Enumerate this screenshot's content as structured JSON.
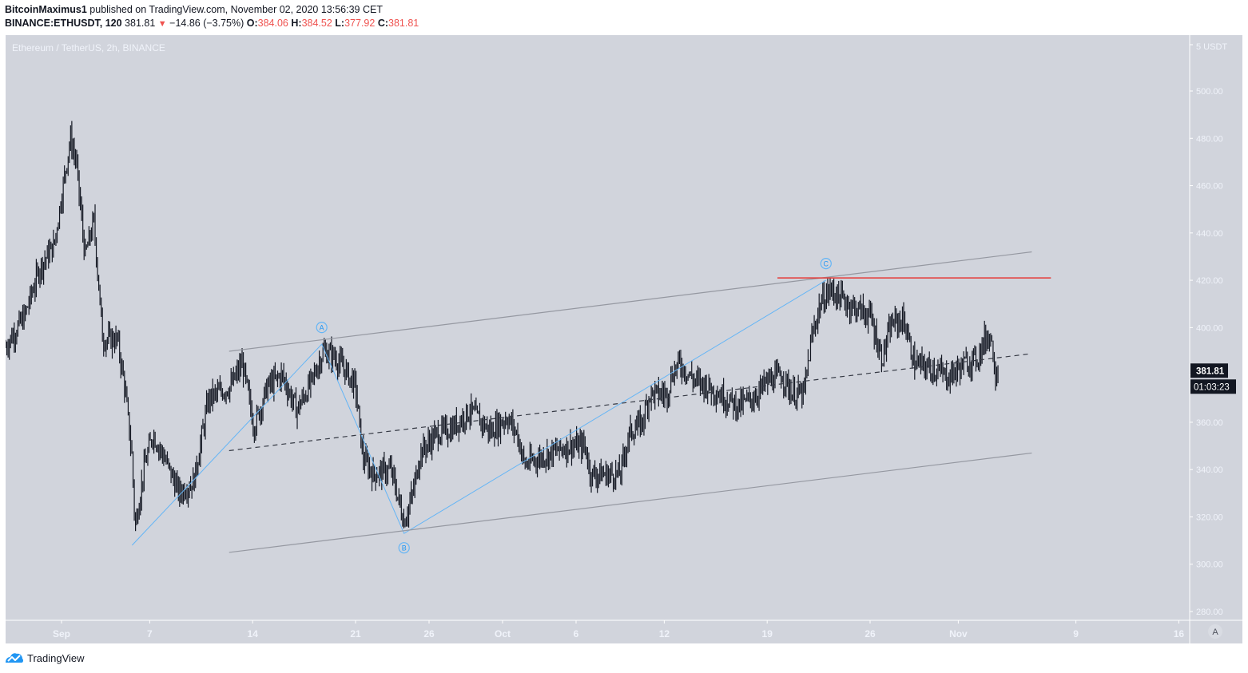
{
  "header": {
    "author": "BitcoinMaximus1",
    "published_text": "published on TradingView.com, November 02, 2020 13:56:39 CET",
    "symbol": "BINANCE:ETHUSDT, 120",
    "last": "381.81",
    "change": "−14.86 (−3.75%)",
    "o_label": "O:",
    "o": "384.06",
    "h_label": "H:",
    "h": "384.52",
    "l_label": "L:",
    "l": "377.92",
    "c_label": "C:",
    "c": "381.81"
  },
  "chart": {
    "legend": "Ethereum / TetherUS, 2h, BINANCE",
    "currency_label": "5 USDT",
    "price_tag": "381.81",
    "countdown_tag": "01:03:23",
    "auto_button": "A"
  },
  "footer": {
    "brand": "TradingView"
  },
  "colors": {
    "background": "#d1d4dc",
    "candle": "#131722",
    "wave_line": "#64b5f6",
    "channel_line": "#9598a1",
    "resistance": "#e53935",
    "axis_text": "#f0f3fa",
    "tag_bg": "#131722"
  },
  "chart_data": {
    "type": "candlestick",
    "title": "Ethereum / TetherUS, 2h, BINANCE",
    "symbol": "BINANCE:ETHUSDT",
    "interval": "2h",
    "ylabel": "USDT",
    "ylim": [
      272,
      512
    ],
    "y_ticks": [
      280,
      300,
      320,
      340,
      360,
      380,
      400,
      420,
      440,
      460,
      480,
      500
    ],
    "x_ticks": [
      "Sep",
      "7",
      "14",
      "21",
      "26",
      "Oct",
      "6",
      "12",
      "19",
      "26",
      "Nov",
      "9",
      "16"
    ],
    "x_tick_days": [
      0,
      6,
      13,
      20,
      25,
      30,
      35,
      41,
      48,
      55,
      61,
      69,
      76
    ],
    "grid": false,
    "price_path": [
      {
        "day": -3.8,
        "price": 392
      },
      {
        "day": -2.5,
        "price": 405
      },
      {
        "day": -1.5,
        "price": 425
      },
      {
        "day": -0.5,
        "price": 435
      },
      {
        "day": 0.6,
        "price": 480
      },
      {
        "day": 1.0,
        "price": 470
      },
      {
        "day": 1.6,
        "price": 430
      },
      {
        "day": 2.2,
        "price": 445
      },
      {
        "day": 2.8,
        "price": 395
      },
      {
        "day": 3.8,
        "price": 395
      },
      {
        "day": 4.3,
        "price": 375
      },
      {
        "day": 4.8,
        "price": 345
      },
      {
        "day": 5.0,
        "price": 315
      },
      {
        "day": 5.6,
        "price": 340
      },
      {
        "day": 6.2,
        "price": 355
      },
      {
        "day": 7.0,
        "price": 345
      },
      {
        "day": 8.0,
        "price": 330
      },
      {
        "day": 9.0,
        "price": 335
      },
      {
        "day": 10.0,
        "price": 370
      },
      {
        "day": 11.5,
        "price": 375
      },
      {
        "day": 12.3,
        "price": 385
      },
      {
        "day": 13.1,
        "price": 358
      },
      {
        "day": 14.0,
        "price": 375
      },
      {
        "day": 15.0,
        "price": 380
      },
      {
        "day": 16.0,
        "price": 365
      },
      {
        "day": 17.0,
        "price": 377
      },
      {
        "day": 17.8,
        "price": 390
      },
      {
        "day": 18.5,
        "price": 388
      },
      {
        "day": 19.3,
        "price": 382
      },
      {
        "day": 20.0,
        "price": 375
      },
      {
        "day": 20.5,
        "price": 345
      },
      {
        "day": 21.2,
        "price": 338
      },
      {
        "day": 22.4,
        "price": 340
      },
      {
        "day": 23.3,
        "price": 318
      },
      {
        "day": 23.9,
        "price": 330
      },
      {
        "day": 24.4,
        "price": 347
      },
      {
        "day": 25.5,
        "price": 355
      },
      {
        "day": 26.5,
        "price": 357
      },
      {
        "day": 27.8,
        "price": 365
      },
      {
        "day": 29.2,
        "price": 356
      },
      {
        "day": 30.3,
        "price": 362
      },
      {
        "day": 31.0,
        "price": 355
      },
      {
        "day": 31.5,
        "price": 342
      },
      {
        "day": 32.5,
        "price": 345
      },
      {
        "day": 34.5,
        "price": 350
      },
      {
        "day": 35.6,
        "price": 350
      },
      {
        "day": 36.0,
        "price": 338
      },
      {
        "day": 38.0,
        "price": 338
      },
      {
        "day": 38.6,
        "price": 355
      },
      {
        "day": 39.5,
        "price": 360
      },
      {
        "day": 40.0,
        "price": 372
      },
      {
        "day": 41.2,
        "price": 372
      },
      {
        "day": 41.5,
        "price": 380
      },
      {
        "day": 42.0,
        "price": 385
      },
      {
        "day": 43.0,
        "price": 378
      },
      {
        "day": 44.0,
        "price": 375
      },
      {
        "day": 45.2,
        "price": 370
      },
      {
        "day": 46.0,
        "price": 367
      },
      {
        "day": 47.0,
        "price": 370
      },
      {
        "day": 48.0,
        "price": 377
      },
      {
        "day": 49.0,
        "price": 380
      },
      {
        "day": 49.7,
        "price": 372
      },
      {
        "day": 50.5,
        "price": 372
      },
      {
        "day": 51.0,
        "price": 395
      },
      {
        "day": 51.6,
        "price": 410
      },
      {
        "day": 52.3,
        "price": 416
      },
      {
        "day": 53.5,
        "price": 410
      },
      {
        "day": 55.0,
        "price": 405
      },
      {
        "day": 55.8,
        "price": 387
      },
      {
        "day": 56.5,
        "price": 402
      },
      {
        "day": 57.3,
        "price": 403
      },
      {
        "day": 58.0,
        "price": 385
      },
      {
        "day": 59.5,
        "price": 382
      },
      {
        "day": 60.3,
        "price": 379
      },
      {
        "day": 61.5,
        "price": 385
      },
      {
        "day": 62.3,
        "price": 387
      },
      {
        "day": 62.8,
        "price": 395
      },
      {
        "day": 63.2,
        "price": 397
      },
      {
        "day": 63.5,
        "price": 382
      },
      {
        "day": 63.7,
        "price": 381.81
      }
    ],
    "annotations": [
      {
        "type": "wave_label",
        "text": "A",
        "day": 17.7,
        "price": 394
      },
      {
        "type": "wave_label",
        "text": "B",
        "day": 23.3,
        "price": 313
      },
      {
        "type": "wave_label",
        "text": "C",
        "day": 52.0,
        "price": 421
      },
      {
        "type": "wave_path",
        "points": [
          {
            "day": 4.8,
            "price": 308
          },
          {
            "day": 17.7,
            "price": 393
          },
          {
            "day": 23.3,
            "price": 313
          },
          {
            "day": 52.0,
            "price": 420
          }
        ]
      },
      {
        "type": "channel_upper",
        "from": {
          "day": 11.4,
          "price": 390
        },
        "to": {
          "day": 66.0,
          "price": 432
        }
      },
      {
        "type": "channel_mid_dashed",
        "from": {
          "day": 11.4,
          "price": 348
        },
        "to": {
          "day": 66.0,
          "price": 389
        }
      },
      {
        "type": "channel_lower",
        "from": {
          "day": 11.4,
          "price": 305
        },
        "to": {
          "day": 66.0,
          "price": 347
        }
      },
      {
        "type": "horizontal_resistance",
        "from_day": 48.7,
        "to_day": 67.3,
        "price": 421
      }
    ],
    "last_price": 381.81,
    "ohlc": {
      "open": 384.06,
      "high": 384.52,
      "low": 377.92,
      "close": 381.81
    },
    "change": -14.86,
    "change_pct": -3.75
  }
}
